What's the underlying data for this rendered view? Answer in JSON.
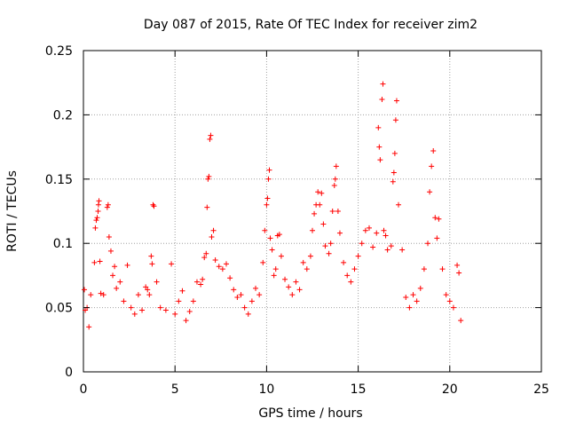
{
  "chart_data": {
    "type": "scatter",
    "title": "Day 087 of 2015, Rate Of TEC Index for receiver zim2",
    "xlabel": "GPS time / hours",
    "ylabel": "ROTI / TECUs",
    "xlim": [
      0,
      25
    ],
    "ylim": [
      0,
      0.25
    ],
    "x_ticks": [
      0,
      5,
      10,
      15,
      20,
      25
    ],
    "y_ticks": [
      0,
      0.05,
      0.1,
      0.15,
      0.2,
      0.25
    ],
    "x_tick_labels": [
      "0",
      "5",
      "10",
      "15",
      "20",
      "25"
    ],
    "y_tick_labels": [
      "0",
      "0.05",
      "0.1",
      "0.15",
      "0.2",
      "0.25"
    ],
    "grid": true,
    "marker": "+",
    "marker_color": "#ff0000",
    "series": [
      {
        "name": "ROTI",
        "points": [
          [
            0.05,
            0.064
          ],
          [
            0.1,
            0.048
          ],
          [
            0.2,
            0.05
          ],
          [
            0.3,
            0.035
          ],
          [
            0.4,
            0.06
          ],
          [
            0.6,
            0.085
          ],
          [
            0.65,
            0.112
          ],
          [
            0.7,
            0.118
          ],
          [
            0.75,
            0.12
          ],
          [
            0.8,
            0.125
          ],
          [
            0.82,
            0.13
          ],
          [
            0.85,
            0.133
          ],
          [
            0.9,
            0.086
          ],
          [
            0.95,
            0.061
          ],
          [
            1.1,
            0.06
          ],
          [
            1.3,
            0.128
          ],
          [
            1.35,
            0.13
          ],
          [
            1.4,
            0.105
          ],
          [
            1.5,
            0.094
          ],
          [
            1.6,
            0.075
          ],
          [
            1.7,
            0.082
          ],
          [
            1.8,
            0.065
          ],
          [
            2.0,
            0.07
          ],
          [
            2.2,
            0.055
          ],
          [
            2.4,
            0.083
          ],
          [
            2.6,
            0.05
          ],
          [
            2.8,
            0.045
          ],
          [
            3.0,
            0.06
          ],
          [
            3.2,
            0.048
          ],
          [
            3.4,
            0.066
          ],
          [
            3.5,
            0.064
          ],
          [
            3.6,
            0.06
          ],
          [
            3.7,
            0.09
          ],
          [
            3.75,
            0.084
          ],
          [
            3.8,
            0.13
          ],
          [
            3.85,
            0.129
          ],
          [
            4.0,
            0.07
          ],
          [
            4.2,
            0.05
          ],
          [
            4.5,
            0.048
          ],
          [
            4.8,
            0.084
          ],
          [
            5.0,
            0.045
          ],
          [
            5.2,
            0.055
          ],
          [
            5.4,
            0.063
          ],
          [
            5.6,
            0.04
          ],
          [
            5.8,
            0.047
          ],
          [
            6.0,
            0.055
          ],
          [
            6.2,
            0.07
          ],
          [
            6.4,
            0.068
          ],
          [
            6.5,
            0.072
          ],
          [
            6.6,
            0.089
          ],
          [
            6.7,
            0.092
          ],
          [
            6.75,
            0.128
          ],
          [
            6.8,
            0.15
          ],
          [
            6.85,
            0.152
          ],
          [
            6.9,
            0.181
          ],
          [
            6.95,
            0.184
          ],
          [
            7.0,
            0.105
          ],
          [
            7.1,
            0.11
          ],
          [
            7.2,
            0.087
          ],
          [
            7.4,
            0.082
          ],
          [
            7.6,
            0.08
          ],
          [
            7.8,
            0.084
          ],
          [
            8.0,
            0.073
          ],
          [
            8.2,
            0.064
          ],
          [
            8.4,
            0.058
          ],
          [
            8.6,
            0.06
          ],
          [
            8.8,
            0.05
          ],
          [
            9.0,
            0.045
          ],
          [
            9.2,
            0.055
          ],
          [
            9.4,
            0.065
          ],
          [
            9.6,
            0.06
          ],
          [
            9.8,
            0.085
          ],
          [
            9.9,
            0.11
          ],
          [
            10.0,
            0.13
          ],
          [
            10.05,
            0.135
          ],
          [
            10.1,
            0.15
          ],
          [
            10.15,
            0.157
          ],
          [
            10.2,
            0.104
          ],
          [
            10.3,
            0.095
          ],
          [
            10.4,
            0.075
          ],
          [
            10.5,
            0.08
          ],
          [
            10.6,
            0.106
          ],
          [
            10.7,
            0.107
          ],
          [
            10.8,
            0.09
          ],
          [
            11.0,
            0.072
          ],
          [
            11.2,
            0.066
          ],
          [
            11.4,
            0.06
          ],
          [
            11.6,
            0.07
          ],
          [
            11.8,
            0.064
          ],
          [
            12.0,
            0.085
          ],
          [
            12.2,
            0.08
          ],
          [
            12.4,
            0.09
          ],
          [
            12.5,
            0.11
          ],
          [
            12.6,
            0.123
          ],
          [
            12.7,
            0.13
          ],
          [
            12.8,
            0.14
          ],
          [
            12.9,
            0.13
          ],
          [
            13.0,
            0.139
          ],
          [
            13.1,
            0.115
          ],
          [
            13.2,
            0.098
          ],
          [
            13.4,
            0.092
          ],
          [
            13.5,
            0.1
          ],
          [
            13.6,
            0.125
          ],
          [
            13.7,
            0.145
          ],
          [
            13.75,
            0.15
          ],
          [
            13.8,
            0.16
          ],
          [
            13.9,
            0.125
          ],
          [
            14.0,
            0.108
          ],
          [
            14.2,
            0.085
          ],
          [
            14.4,
            0.075
          ],
          [
            14.6,
            0.07
          ],
          [
            14.8,
            0.08
          ],
          [
            15.0,
            0.09
          ],
          [
            15.2,
            0.1
          ],
          [
            15.4,
            0.11
          ],
          [
            15.6,
            0.112
          ],
          [
            15.8,
            0.097
          ],
          [
            16.0,
            0.108
          ],
          [
            16.1,
            0.19
          ],
          [
            16.15,
            0.175
          ],
          [
            16.2,
            0.165
          ],
          [
            16.3,
            0.212
          ],
          [
            16.35,
            0.224
          ],
          [
            16.4,
            0.11
          ],
          [
            16.5,
            0.106
          ],
          [
            16.6,
            0.095
          ],
          [
            16.8,
            0.098
          ],
          [
            16.9,
            0.148
          ],
          [
            16.95,
            0.155
          ],
          [
            17.0,
            0.17
          ],
          [
            17.05,
            0.196
          ],
          [
            17.1,
            0.211
          ],
          [
            17.2,
            0.13
          ],
          [
            17.4,
            0.095
          ],
          [
            17.6,
            0.058
          ],
          [
            17.8,
            0.05
          ],
          [
            18.0,
            0.06
          ],
          [
            18.2,
            0.055
          ],
          [
            18.4,
            0.065
          ],
          [
            18.6,
            0.08
          ],
          [
            18.8,
            0.1
          ],
          [
            18.9,
            0.14
          ],
          [
            19.0,
            0.16
          ],
          [
            19.1,
            0.172
          ],
          [
            19.2,
            0.12
          ],
          [
            19.3,
            0.104
          ],
          [
            19.4,
            0.119
          ],
          [
            19.6,
            0.08
          ],
          [
            19.8,
            0.06
          ],
          [
            20.0,
            0.055
          ],
          [
            20.2,
            0.05
          ],
          [
            20.4,
            0.083
          ],
          [
            20.5,
            0.077
          ],
          [
            20.6,
            0.04
          ]
        ]
      }
    ]
  }
}
